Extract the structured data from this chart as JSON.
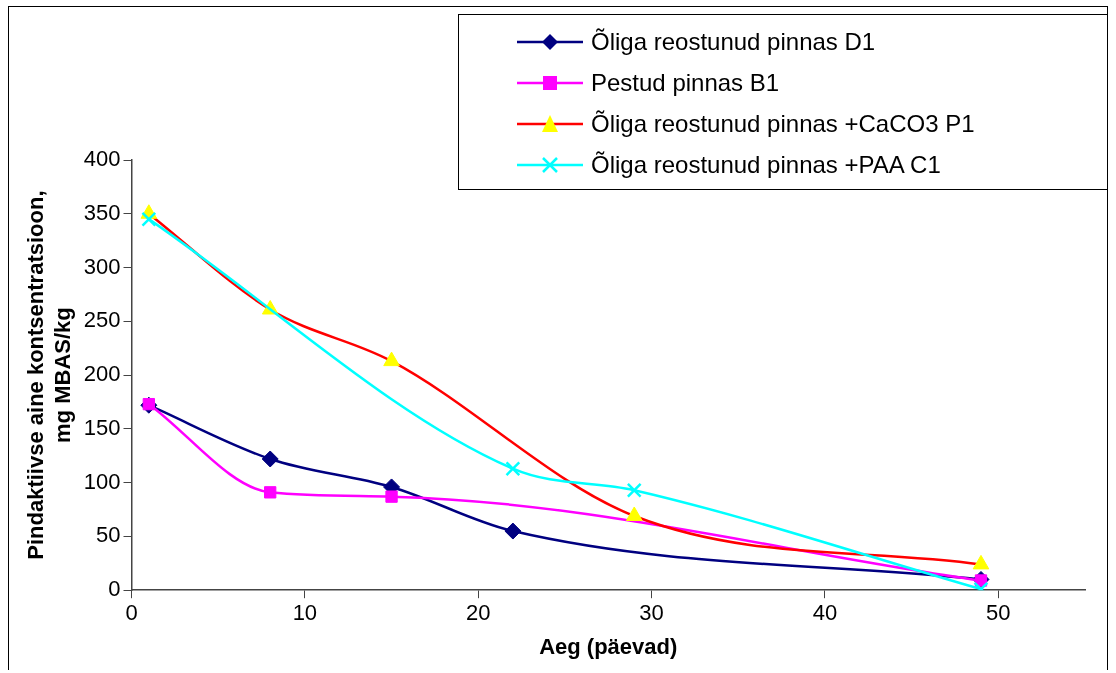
{
  "chart_data": {
    "type": "line",
    "xlabel": "Aeg (päevad)",
    "ylabel": "Pindaktiivse aine kontsentratsioon,\nmg MBAS/kg",
    "xlim": [
      0,
      55
    ],
    "xticks": [
      0,
      10,
      20,
      30,
      40,
      50
    ],
    "ylim": [
      0,
      400
    ],
    "yticks": [
      0,
      50,
      100,
      150,
      200,
      250,
      300,
      350,
      400
    ],
    "grid": false,
    "legend": "top right",
    "series": [
      {
        "name": "Õliga reostunud pinnas D1",
        "color": "#000080",
        "marker": "diamond",
        "x": [
          1,
          8,
          15,
          22,
          49
        ],
        "values": [
          172,
          122,
          96,
          55,
          10
        ]
      },
      {
        "name": "Pestud pinnas B1",
        "color": "#ff00ff",
        "marker": "square",
        "x": [
          1,
          8,
          15,
          49
        ],
        "values": [
          173,
          91,
          87,
          9
        ]
      },
      {
        "name": "Õliga reostunud pinnas +CaCO3 P1",
        "color": "#ff0000",
        "colors": [
          "#ffff00",
          "#ffff00",
          "#ffff00",
          "#ffff00",
          "#ffff00"
        ],
        "marker": "triangle",
        "x": [
          1,
          8,
          15,
          29,
          49
        ],
        "values": [
          350,
          261,
          213,
          69,
          24
        ]
      },
      {
        "name": "Õliga reostunud pinnas +PAA C1",
        "color": "#00ffff",
        "marker": "cross",
        "x": [
          1,
          22,
          29,
          49
        ],
        "values": [
          345,
          113,
          93,
          1
        ]
      }
    ]
  }
}
